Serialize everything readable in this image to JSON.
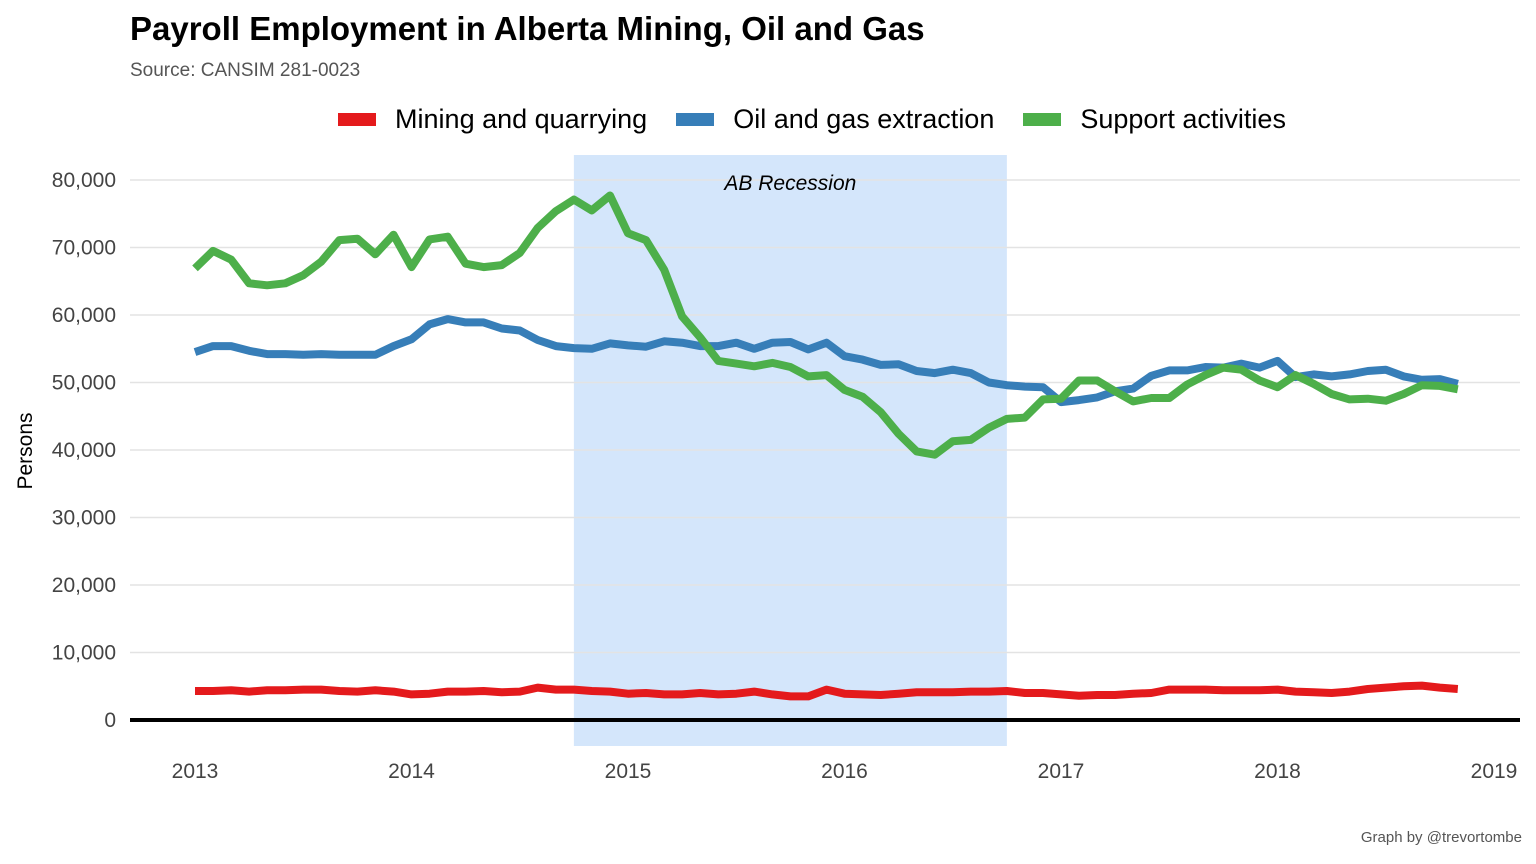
{
  "header": {
    "title": "Payroll Employment in Alberta Mining, Oil and Gas",
    "subtitle": "Source: CANSIM 281-0023"
  },
  "caption": "Graph by @trevortombe",
  "chart_data": {
    "type": "line",
    "title": "Payroll Employment in Alberta Mining, Oil and Gas",
    "subtitle": "Source: CANSIM 281-0023",
    "xlabel": "",
    "ylabel": "Persons",
    "xlim": [
      2013,
      2019
    ],
    "ylim": [
      -4000,
      84000
    ],
    "x_ticks": [
      "2013",
      "2014",
      "2015",
      "2016",
      "2017",
      "2018",
      "2019"
    ],
    "y_ticks": [
      "0",
      "10,000",
      "20,000",
      "30,000",
      "40,000",
      "50,000",
      "60,000",
      "70,000",
      "80,000"
    ],
    "grid": "horizontal",
    "legend_position": "top",
    "annotation": {
      "text": "AB Recession",
      "shaded_range": [
        2014.75,
        2016.75
      ]
    },
    "x": [
      2013.0,
      2013.083,
      2013.167,
      2013.25,
      2013.333,
      2013.417,
      2013.5,
      2013.583,
      2013.667,
      2013.75,
      2013.833,
      2013.917,
      2014.0,
      2014.083,
      2014.167,
      2014.25,
      2014.333,
      2014.417,
      2014.5,
      2014.583,
      2014.667,
      2014.75,
      2014.833,
      2014.917,
      2015.0,
      2015.083,
      2015.167,
      2015.25,
      2015.333,
      2015.417,
      2015.5,
      2015.583,
      2015.667,
      2015.75,
      2015.833,
      2015.917,
      2016.0,
      2016.083,
      2016.167,
      2016.25,
      2016.333,
      2016.417,
      2016.5,
      2016.583,
      2016.667,
      2016.75,
      2016.833,
      2016.917,
      2017.0,
      2017.083,
      2017.167,
      2017.25,
      2017.333,
      2017.417,
      2017.5,
      2017.583,
      2017.667,
      2017.75,
      2017.833,
      2017.917,
      2018.0,
      2018.083,
      2018.167,
      2018.25,
      2018.333,
      2018.417,
      2018.5,
      2018.583,
      2018.667,
      2018.75,
      2018.833
    ],
    "series": [
      {
        "name": "Mining and quarrying",
        "color": "#e41a1c",
        "values": [
          4300,
          4300,
          4400,
          4200,
          4400,
          4400,
          4500,
          4500,
          4300,
          4200,
          4400,
          4200,
          3800,
          3900,
          4200,
          4200,
          4300,
          4100,
          4200,
          4800,
          4500,
          4500,
          4300,
          4200,
          3900,
          4000,
          3800,
          3800,
          4000,
          3800,
          3900,
          4200,
          3800,
          3500,
          3500,
          4500,
          3900,
          3800,
          3700,
          3900,
          4100,
          4100,
          4100,
          4200,
          4200,
          4300,
          4000,
          4000,
          3800,
          3600,
          3700,
          3700,
          3900,
          4000,
          4500,
          4500,
          4500,
          4400,
          4400,
          4400,
          4500,
          4200,
          4100,
          4000,
          4200,
          4600,
          4800,
          5000,
          5100,
          4800,
          4600
        ]
      },
      {
        "name": "Oil and gas extraction",
        "color": "#377eb8",
        "values": [
          54500,
          55400,
          55400,
          54700,
          54200,
          54200,
          54100,
          54200,
          54100,
          54100,
          54100,
          55400,
          56400,
          58600,
          59400,
          58900,
          58900,
          58000,
          57700,
          56300,
          55400,
          55100,
          55000,
          55800,
          55500,
          55300,
          56100,
          55900,
          55400,
          55400,
          55900,
          55000,
          55900,
          56000,
          54900,
          55900,
          53900,
          53400,
          52600,
          52700,
          51700,
          51400,
          51900,
          51400,
          50000,
          49600,
          49400,
          49300,
          47100,
          47400,
          47800,
          48700,
          49100,
          51000,
          51800,
          51800,
          52300,
          52200,
          52800,
          52200,
          53200,
          50800,
          51200,
          50900,
          51200,
          51700,
          51900,
          50900,
          50400,
          50500,
          49800
        ]
      },
      {
        "name": "Support activities",
        "color": "#4daf4a",
        "values": [
          66900,
          69500,
          68200,
          64700,
          64400,
          64700,
          65900,
          67900,
          71100,
          71300,
          69000,
          71900,
          67100,
          71200,
          71600,
          67600,
          67100,
          67400,
          69200,
          72900,
          75400,
          77100,
          75500,
          77700,
          72100,
          71100,
          66700,
          59800,
          56700,
          53200,
          52800,
          52400,
          52900,
          52300,
          50900,
          51100,
          48900,
          47900,
          45600,
          42400,
          39800,
          39300,
          41300,
          41500,
          43300,
          44600,
          44800,
          47500,
          47600,
          50300,
          50300,
          48700,
          47200,
          47700,
          47700,
          49700,
          51100,
          52200,
          51900,
          50300,
          49300,
          51100,
          49800,
          48300,
          47500,
          47600,
          47300,
          48300,
          49600,
          49500,
          49000
        ]
      }
    ]
  }
}
